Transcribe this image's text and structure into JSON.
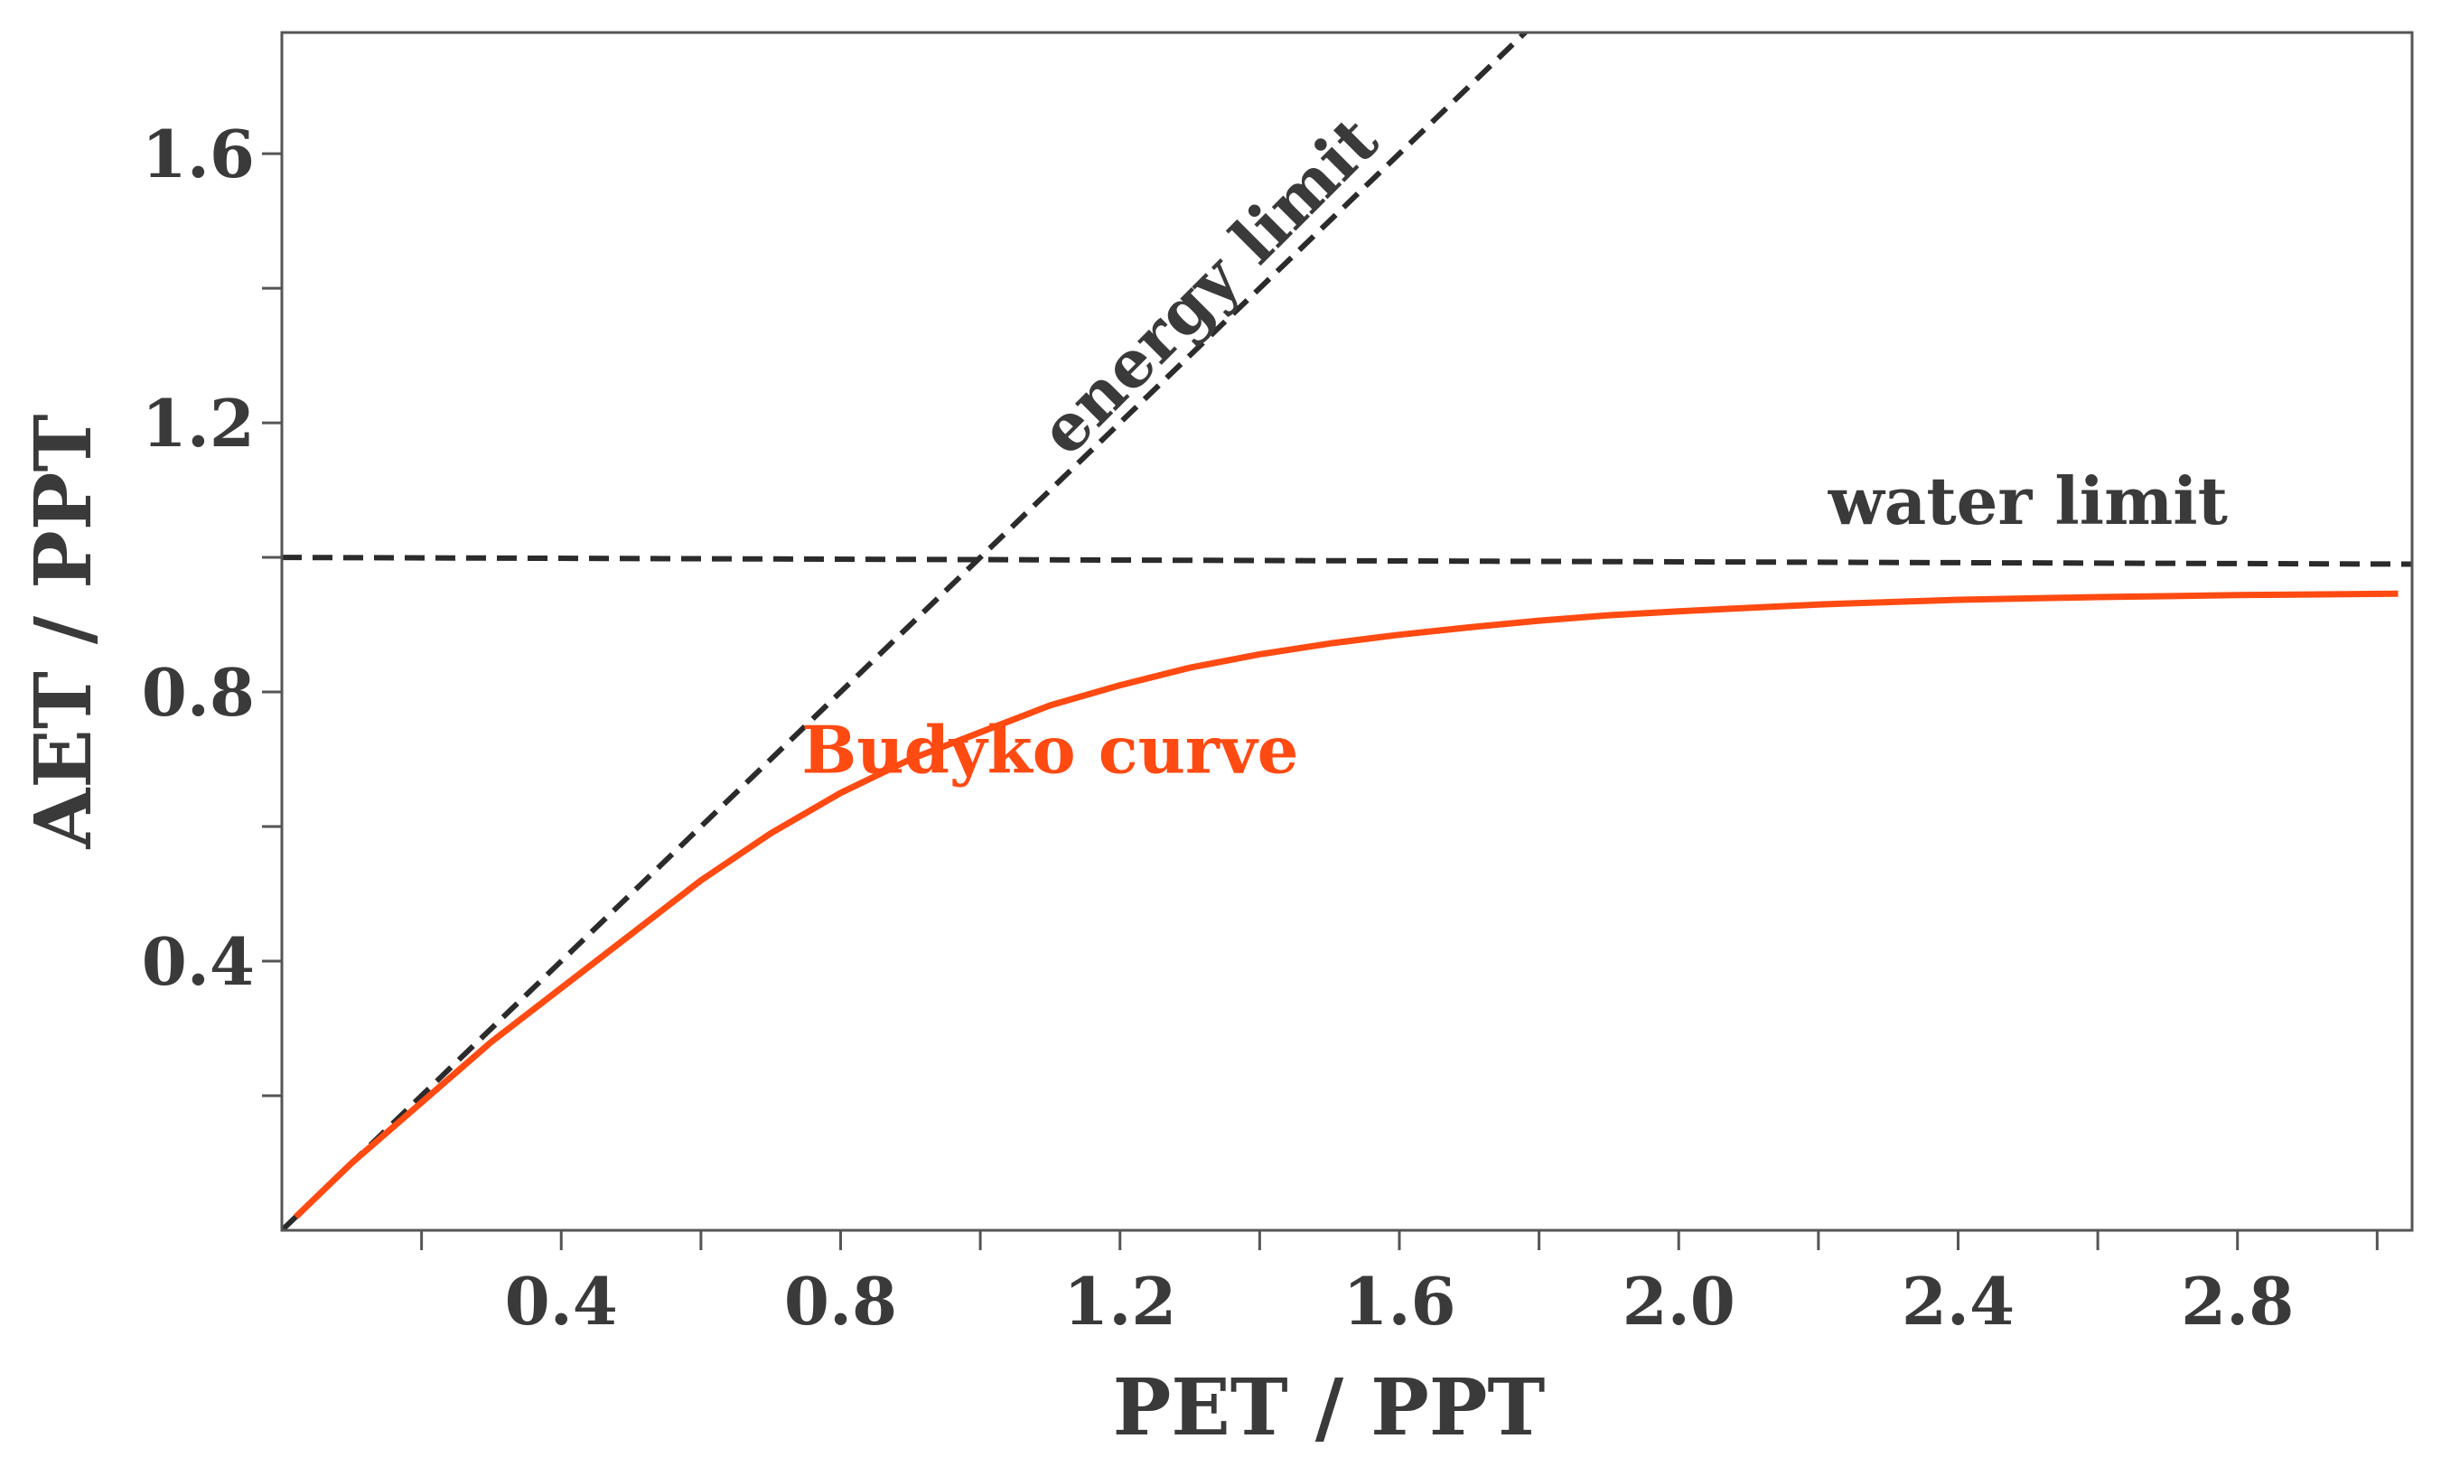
{
  "chart_data": {
    "type": "line",
    "title": "",
    "xlabel": "PET / PPT",
    "ylabel": "AET / PPT",
    "xlim": [
      0.0,
      3.05
    ],
    "ylim": [
      0.0,
      1.78
    ],
    "xticks": [
      0.4,
      0.8,
      1.2,
      1.6,
      2.0,
      2.4,
      2.8
    ],
    "xtick_labels": [
      "0.4",
      "0.8",
      "1.2",
      "1.6",
      "2.0",
      "2.4",
      "2.8"
    ],
    "xminor_ticks": [
      0.2,
      0.6,
      1.0,
      1.4,
      1.8,
      2.2,
      2.6,
      3.0
    ],
    "yticks": [
      0.4,
      0.8,
      1.2,
      1.6
    ],
    "ytick_labels": [
      "0.4",
      "0.8",
      "1.2",
      "1.6"
    ],
    "yminor_ticks": [
      0.2,
      0.6,
      1.0,
      1.4
    ],
    "grid": false,
    "colors": {
      "budyko": "#ff4a12",
      "limits": "#2b2b2b",
      "text": "#3a3a3a"
    },
    "series": [
      {
        "name": "energy limit",
        "style": "dashed",
        "color": "#2b2b2b",
        "x": [
          0.0,
          1.8
        ],
        "y": [
          0.0,
          1.8
        ]
      },
      {
        "name": "water limit",
        "style": "dashed",
        "color": "#2b2b2b",
        "x": [
          0.0,
          3.05
        ],
        "y": [
          1.0,
          0.99
        ]
      },
      {
        "name": "Budyko curve",
        "style": "solid",
        "color": "#ff4a12",
        "x": [
          0.02,
          0.1,
          0.2,
          0.3,
          0.4,
          0.5,
          0.6,
          0.7,
          0.8,
          0.9,
          1.0,
          1.1,
          1.2,
          1.3,
          1.4,
          1.5,
          1.6,
          1.7,
          1.8,
          1.9,
          2.0,
          2.2,
          2.4,
          2.6,
          2.8,
          3.03
        ],
        "y": [
          0.02,
          0.1,
          0.19,
          0.28,
          0.36,
          0.44,
          0.52,
          0.59,
          0.65,
          0.7,
          0.74,
          0.78,
          0.81,
          0.836,
          0.856,
          0.872,
          0.885,
          0.896,
          0.906,
          0.914,
          0.92,
          0.93,
          0.937,
          0.941,
          0.944,
          0.946
        ]
      }
    ],
    "annotations": [
      {
        "text": "energy limit",
        "x": 1.35,
        "y": 1.38,
        "rotation": -45,
        "color": "#3a3a3a"
      },
      {
        "text": "water limit",
        "x": 2.5,
        "y": 1.05,
        "rotation": 0,
        "color": "#3a3a3a"
      },
      {
        "text": "Budyko curve",
        "x": 1.1,
        "y": 0.68,
        "rotation": 0,
        "color": "#ff4a12"
      }
    ]
  }
}
